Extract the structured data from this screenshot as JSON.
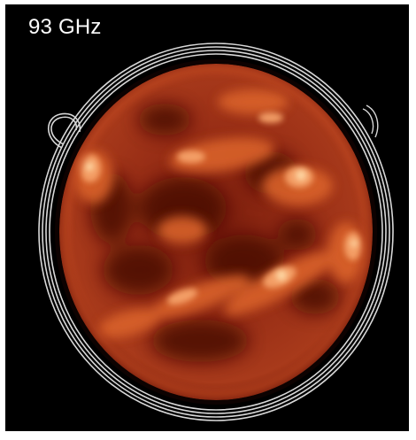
{
  "image": {
    "label": "93 GHz",
    "background_color": "#000000",
    "contour_color": "#d8d8d8",
    "disk_palette": {
      "dark": "#5a0f07",
      "mid": "#a8361c",
      "bright": "#e8703a",
      "hot": "#ffd89a"
    }
  }
}
